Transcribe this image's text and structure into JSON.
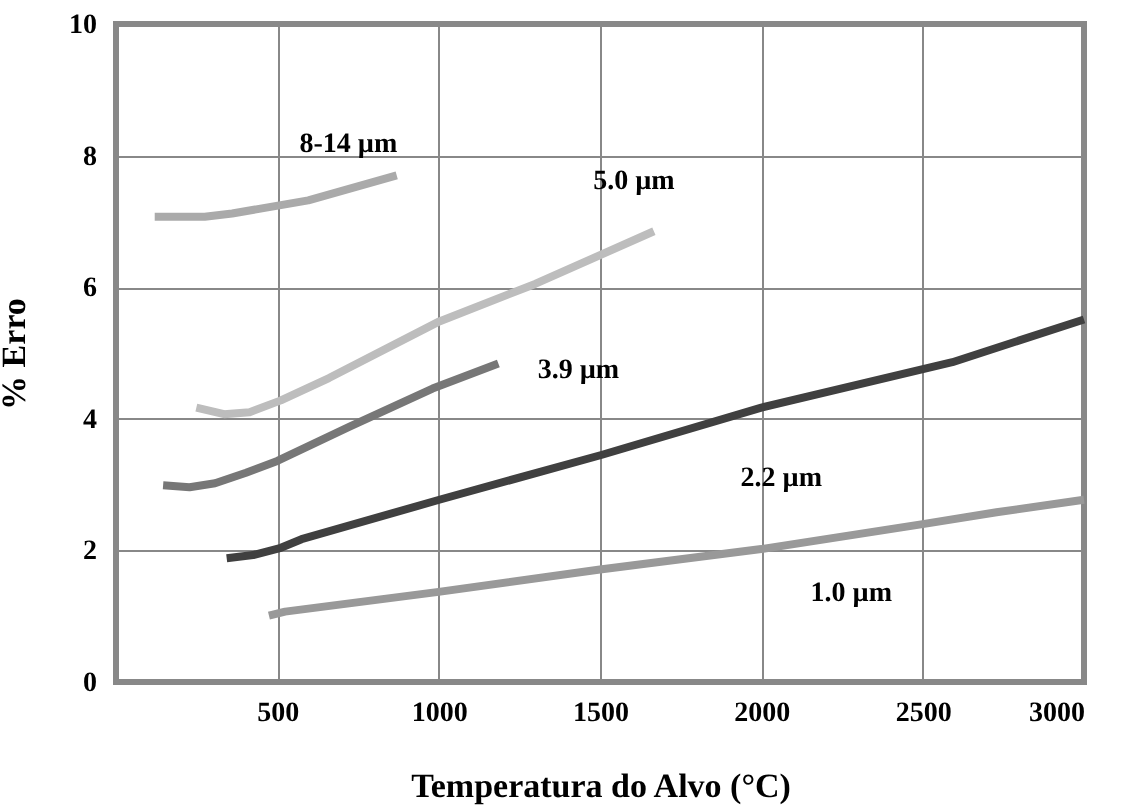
{
  "chart_data": {
    "type": "line",
    "xlabel": "Temperatura do Alvo (°C)",
    "ylabel": "% Erro",
    "xlim": [
      0,
      3000
    ],
    "xticks": [
      500,
      1000,
      1500,
      2000,
      2500,
      3000
    ],
    "ylim": [
      0,
      10
    ],
    "yticks": [
      0,
      2,
      4,
      6,
      8,
      10
    ],
    "grid": true,
    "marker": "none",
    "line_style": "solid",
    "series": [
      {
        "name": "8-14 µm",
        "color": "#aaaaaa",
        "x": [
          120,
          275,
          360,
          596,
          870
        ],
        "values": [
          7.07,
          7.07,
          7.12,
          7.32,
          7.7
        ]
      },
      {
        "name": "5.0 µm",
        "color": "#bdbdbd",
        "x": [
          249,
          335,
          414,
          511,
          660,
          1002,
          1299,
          1667
        ],
        "values": [
          4.17,
          4.07,
          4.1,
          4.28,
          4.62,
          5.48,
          6.05,
          6.85
        ]
      },
      {
        "name": "3.9 µm",
        "color": "#777777",
        "x": [
          146,
          228,
          307,
          403,
          500,
          724,
          981,
          1185
        ],
        "values": [
          2.99,
          2.96,
          3.02,
          3.18,
          3.36,
          3.88,
          4.46,
          4.84
        ]
      },
      {
        "name": "2.2 µm",
        "color": "#404040",
        "x": [
          343,
          425,
          511,
          575,
          1002,
          1504,
          2000,
          2592,
          3000
        ],
        "values": [
          1.88,
          1.93,
          2.04,
          2.17,
          2.77,
          3.45,
          4.17,
          4.86,
          5.51
        ]
      },
      {
        "name": "1.0 µm",
        "color": "#999999",
        "x": [
          474,
          524,
          1000,
          1500,
          2000,
          2500,
          2729,
          3000
        ],
        "values": [
          1.01,
          1.07,
          1.37,
          1.71,
          2.02,
          2.4,
          2.58,
          2.77
        ]
      }
    ]
  }
}
